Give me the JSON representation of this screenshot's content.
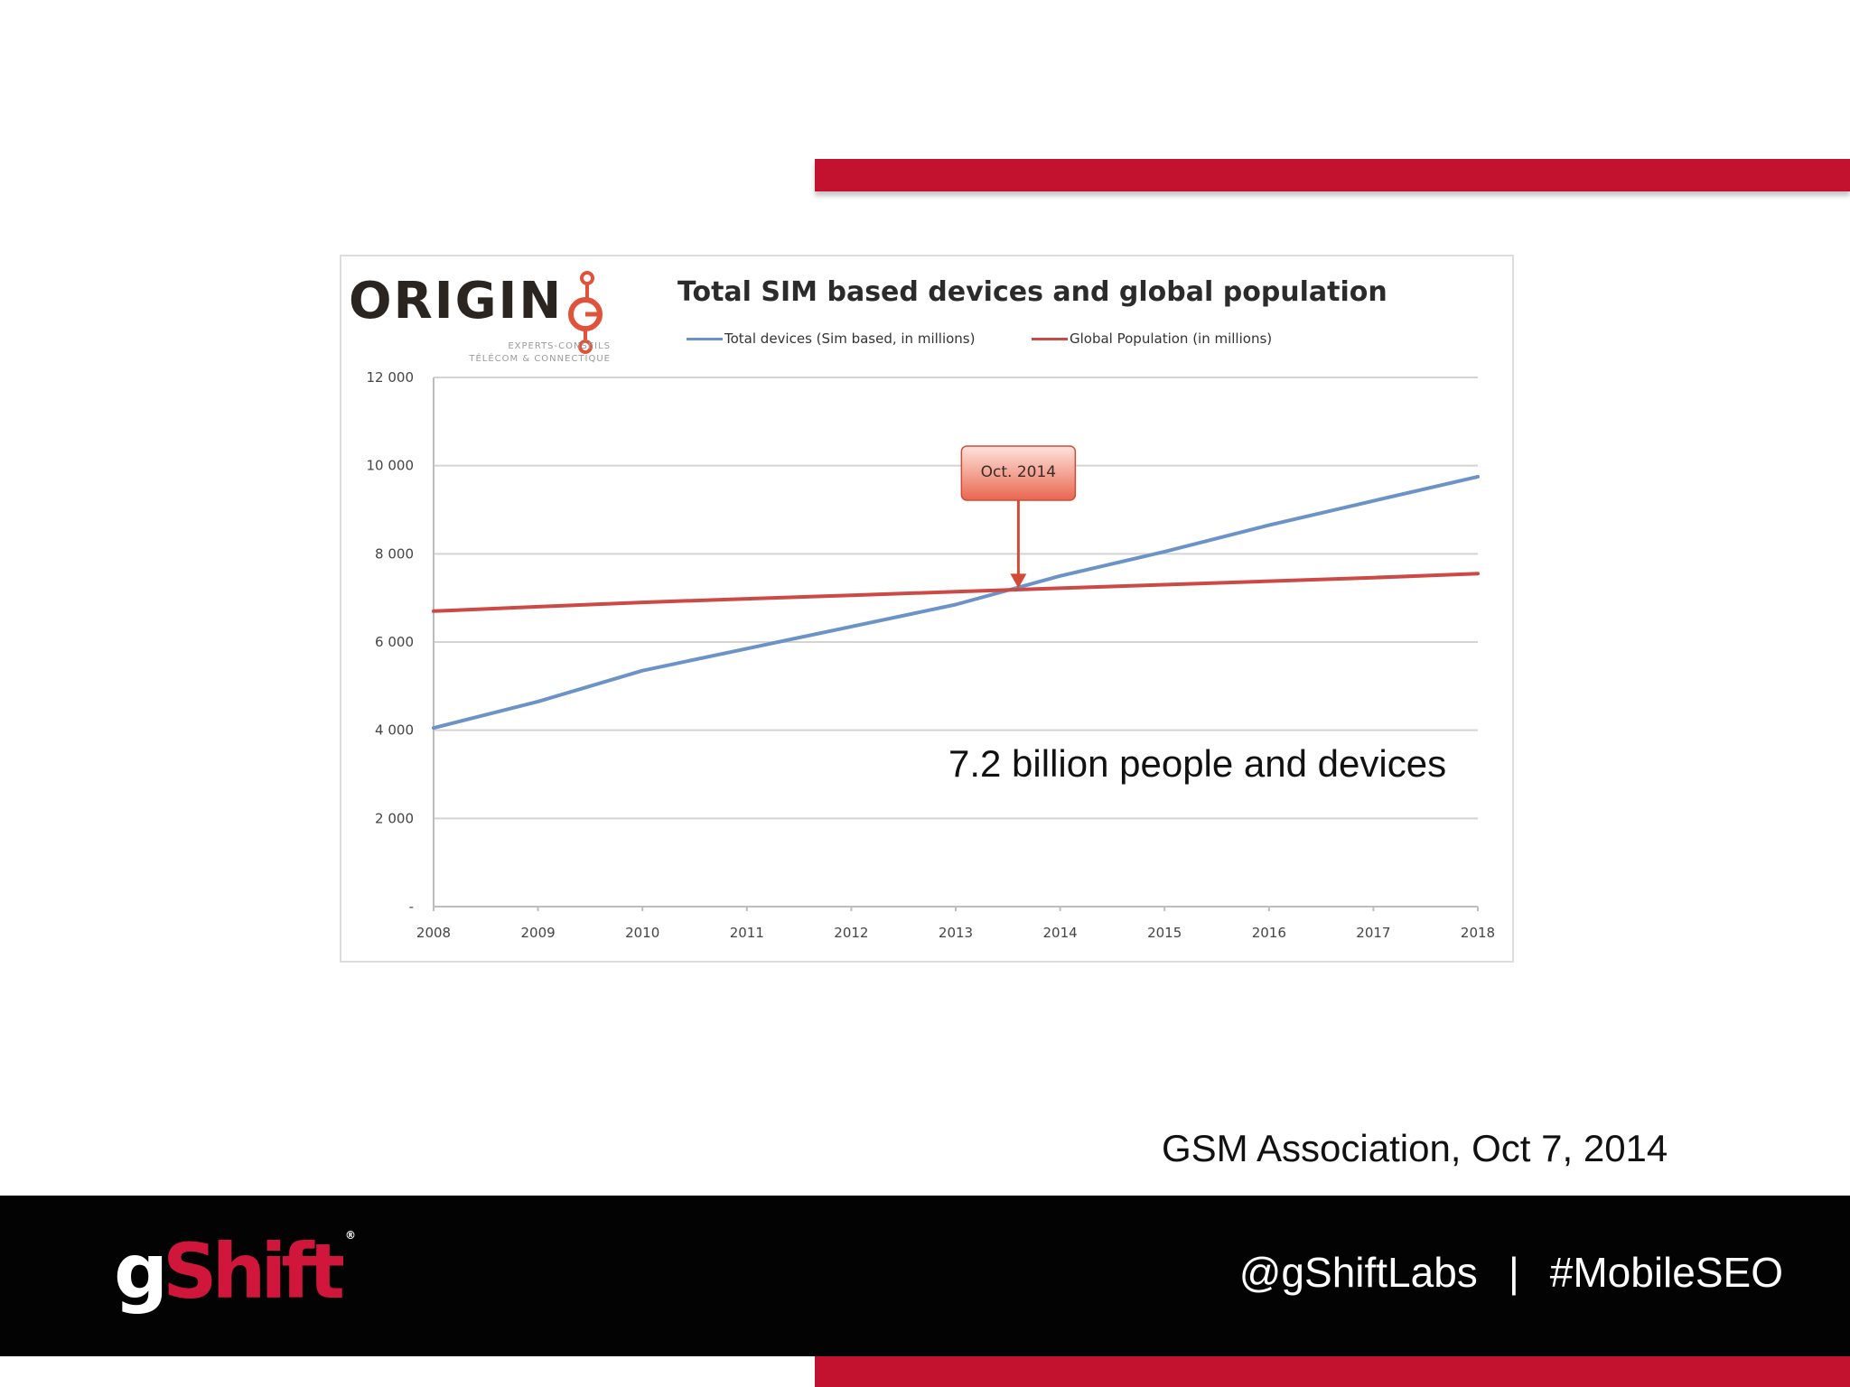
{
  "slide": {
    "annotation": "7.2 billion people and devices",
    "source": "GSM Association, Oct 7, 2014",
    "footer": {
      "brand_g": "g",
      "brand_shift": "Shift",
      "brand_reg": "®",
      "handle": "@gShiftLabs",
      "separator": "|",
      "hashtag": "#MobileSEO"
    },
    "colors": {
      "accent": "#c3122f",
      "footer_bg": "#030303"
    }
  },
  "logo": {
    "word": "ORIGIN",
    "line1": "EXPERTS-CONSEILS",
    "line2": "TÉLÉCOM & CONNECTIQUE"
  },
  "chart_data": {
    "type": "line",
    "title": "Total SIM based devices and global population",
    "xlabel": "",
    "ylabel": "",
    "x": [
      2008,
      2009,
      2010,
      2011,
      2012,
      2013,
      2014,
      2015,
      2016,
      2017,
      2018
    ],
    "ylim": [
      0,
      12000
    ],
    "yticks": [
      0,
      2000,
      4000,
      6000,
      8000,
      10000,
      12000
    ],
    "ytick_labels": [
      "-",
      "2 000",
      "4 000",
      "6 000",
      "8 000",
      "10 000",
      "12 000"
    ],
    "grid": true,
    "legend_position": "top",
    "series": [
      {
        "name": "Total devices (Sim based, in millions)",
        "color": "#6b93c7",
        "values": [
          4050,
          4650,
          5350,
          5850,
          6350,
          6850,
          7500,
          8050,
          8650,
          9200,
          9750
        ]
      },
      {
        "name": "Global Population (in millions)",
        "color": "#cc4a46",
        "values": [
          6700,
          6800,
          6900,
          6980,
          7060,
          7140,
          7220,
          7300,
          7380,
          7460,
          7550
        ]
      }
    ],
    "callout": {
      "label": "Oct. 2014",
      "x": 2013.6,
      "y": 7180
    }
  }
}
